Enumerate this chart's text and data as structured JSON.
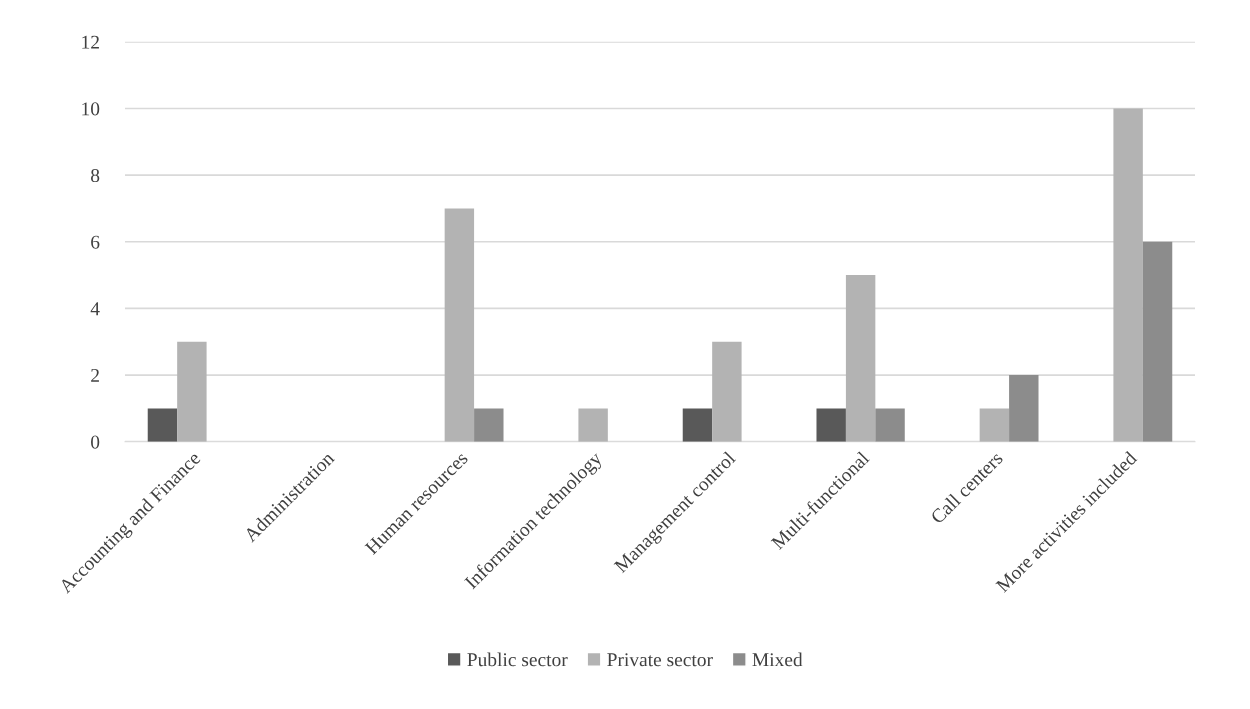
{
  "chart_data": {
    "type": "bar",
    "categories": [
      "Accounting and Finance",
      "Administration",
      "Human resources",
      "Information technology",
      "Management control",
      "Multi-functional",
      "Call centers",
      "More activities included"
    ],
    "series": [
      {
        "name": "Public sector",
        "color": "#595959",
        "values": [
          1,
          0,
          0,
          0,
          1,
          1,
          0,
          0
        ]
      },
      {
        "name": "Private sector",
        "color": "#b3b3b3",
        "values": [
          3,
          0,
          7,
          1,
          3,
          5,
          1,
          10
        ]
      },
      {
        "name": "Mixed",
        "color": "#8c8c8c",
        "values": [
          0,
          0,
          1,
          0,
          0,
          1,
          2,
          6
        ]
      }
    ],
    "ylim": [
      0,
      12
    ],
    "yticks": [
      0,
      2,
      4,
      6,
      8,
      10,
      12
    ],
    "grid": "y",
    "legend": "bottom"
  }
}
